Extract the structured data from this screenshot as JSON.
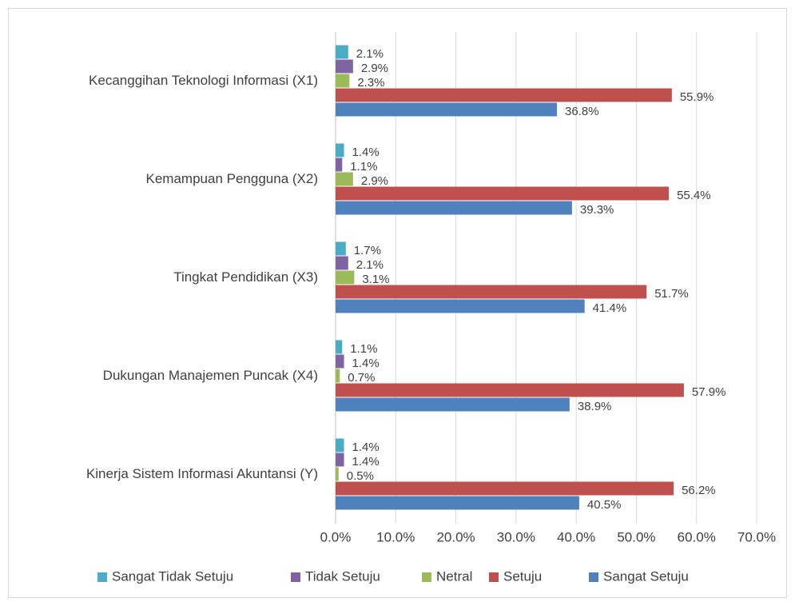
{
  "chart_data": {
    "type": "bar",
    "orientation": "horizontal",
    "categories": [
      "Kecanggihan Teknologi Informasi (X1)",
      "Kemampuan Pengguna (X2)",
      "Tingkat Pendidikan (X3)",
      "Dukungan Manajemen Puncak (X4)",
      "Kinerja Sistem Informasi Akuntansi (Y)"
    ],
    "series": [
      {
        "name": "Sangat Tidak Setuju",
        "color": "#4bacc6",
        "values": [
          2.1,
          1.4,
          1.7,
          1.1,
          1.4
        ],
        "value_labels": [
          "2.1%",
          "1.4%",
          "1.7%",
          "1.1%",
          "1.4%"
        ]
      },
      {
        "name": "Tidak Setuju",
        "color": "#8064a2",
        "values": [
          2.9,
          1.1,
          2.1,
          1.4,
          1.4
        ],
        "value_labels": [
          "2.9%",
          "1.1%",
          "2.1%",
          "1.4%",
          "1.4%"
        ]
      },
      {
        "name": "Netral",
        "color": "#9bbb59",
        "values": [
          2.3,
          2.9,
          3.1,
          0.7,
          0.5
        ],
        "value_labels": [
          "2.3%",
          "2.9%",
          "3.1%",
          "0.7%",
          "0.5%"
        ]
      },
      {
        "name": "Setuju",
        "color": "#c0504d",
        "values": [
          55.9,
          55.4,
          51.7,
          57.9,
          56.2
        ],
        "value_labels": [
          "55.9%",
          "55.4%",
          "51.7%",
          "57.9%",
          "56.2%"
        ]
      },
      {
        "name": "Sangat Setuju",
        "color": "#4f81bd",
        "values": [
          36.8,
          39.3,
          41.4,
          38.9,
          40.5
        ],
        "value_labels": [
          "36.8%",
          "39.3%",
          "41.4%",
          "38.9%",
          "40.5%"
        ]
      }
    ],
    "xlim": [
      0,
      70
    ],
    "xticks": [
      {
        "value": 0,
        "label": "0.0%"
      },
      {
        "value": 10,
        "label": "10.0%"
      },
      {
        "value": 20,
        "label": "20.0%"
      },
      {
        "value": 30,
        "label": "30.0%"
      },
      {
        "value": 40,
        "label": "40.0%"
      },
      {
        "value": 50,
        "label": "50.0%"
      },
      {
        "value": 60,
        "label": "60.0%"
      },
      {
        "value": 70,
        "label": "70.0%"
      }
    ],
    "grid": true,
    "legend": "bottom"
  }
}
